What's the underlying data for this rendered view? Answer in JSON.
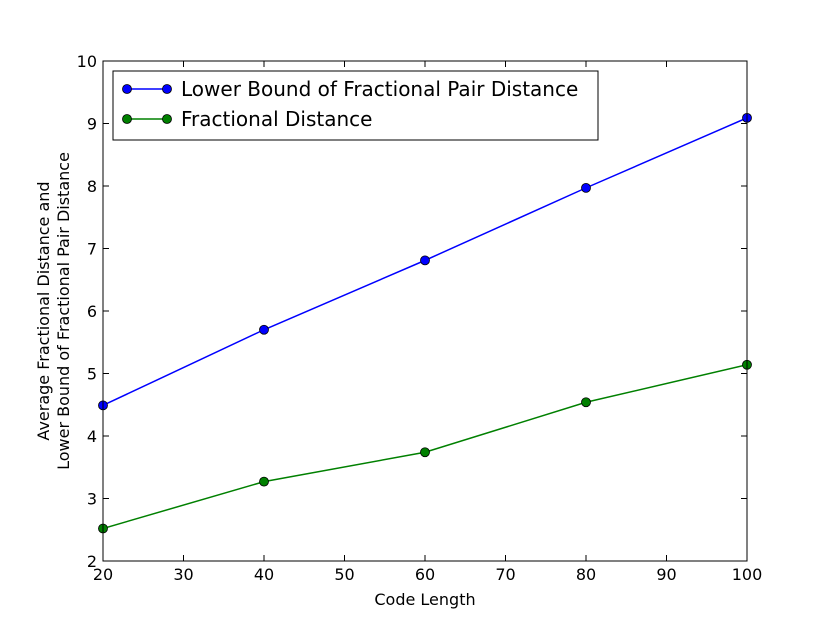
{
  "chart_data": {
    "type": "line",
    "title": "",
    "xlabel": "Code Length",
    "ylabel_lines": [
      "Average Fractional Distance and",
      "Lower Bound of Fractional Pair Distance"
    ],
    "xlim": [
      20,
      100
    ],
    "ylim": [
      2,
      10
    ],
    "xticks": [
      20,
      30,
      40,
      50,
      60,
      70,
      80,
      90,
      100
    ],
    "yticks": [
      2,
      3,
      4,
      5,
      6,
      7,
      8,
      9,
      10
    ],
    "grid": false,
    "legend_position": "top-left",
    "x": [
      20,
      40,
      60,
      80,
      100
    ],
    "series": [
      {
        "name": "Lower Bound of Fractional Pair Distance",
        "color": "#0000ff",
        "marker": "circle",
        "values": [
          4.49,
          5.7,
          6.81,
          7.97,
          9.09
        ]
      },
      {
        "name": "Fractional Distance",
        "color": "#008000",
        "marker": "circle",
        "values": [
          2.52,
          3.27,
          3.74,
          4.54,
          5.14
        ]
      }
    ]
  }
}
